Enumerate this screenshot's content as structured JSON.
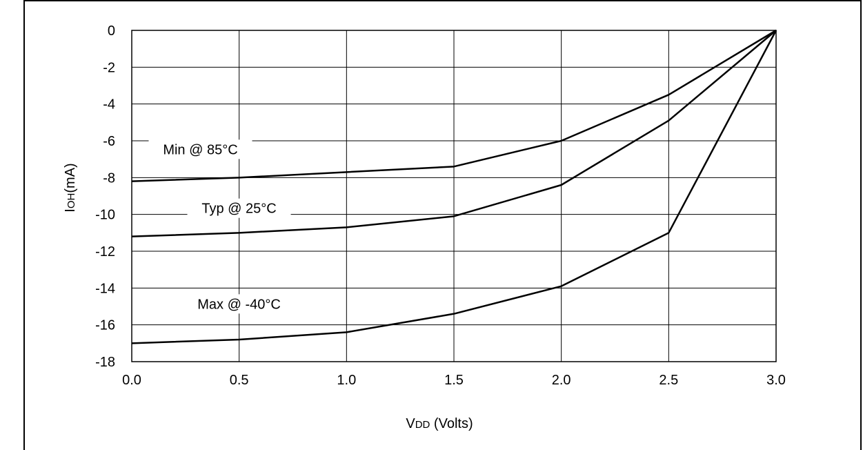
{
  "chart_data": {
    "type": "line",
    "xlabel_main": "V",
    "xlabel_sub": "DD",
    "xlabel_rest": " (Volts)",
    "ylabel_main": "I",
    "ylabel_sub": "OH",
    "ylabel_rest": "(mA)",
    "xlim": [
      0.0,
      3.0
    ],
    "ylim": [
      -18,
      0
    ],
    "x_ticks": [
      "0.0",
      "0.5",
      "1.0",
      "1.5",
      "2.0",
      "2.5",
      "3.0"
    ],
    "y_ticks": [
      "0",
      "-2",
      "-4",
      "-6",
      "-8",
      "-10",
      "-12",
      "-14",
      "-16",
      "-18"
    ],
    "grid": true,
    "x": [
      0.0,
      0.5,
      1.0,
      1.5,
      2.0,
      2.5,
      3.0
    ],
    "series": [
      {
        "name": "Min @ 85°C",
        "values": [
          -8.2,
          -8.0,
          -7.7,
          -7.4,
          -6.0,
          -3.5,
          0
        ]
      },
      {
        "name": "Typ @ 25°C",
        "values": [
          -11.2,
          -11.0,
          -10.7,
          -10.1,
          -8.4,
          -4.9,
          0
        ]
      },
      {
        "name": "Max @ -40°C",
        "values": [
          -17.0,
          -16.8,
          -16.4,
          -15.4,
          -13.9,
          -11.0,
          0
        ]
      }
    ],
    "annotations": [
      "Min @ 85°C",
      "Typ @ 25°C",
      "Max @ -40°C"
    ]
  }
}
